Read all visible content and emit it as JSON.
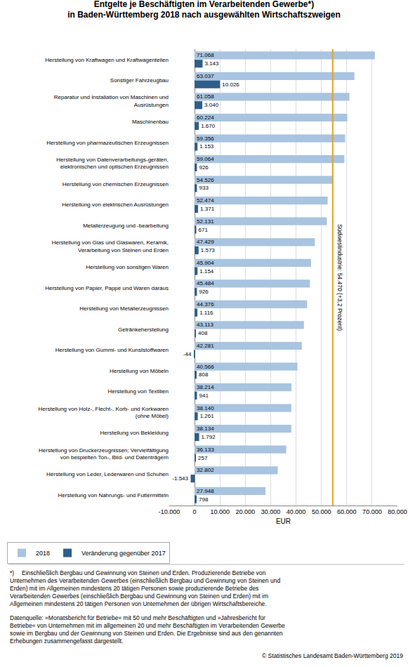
{
  "chart_data": {
    "type": "bar",
    "orientation": "horizontal",
    "title": "Entgelte je Beschäftigten im Verarbeitenden Gewerbe*)\nin Baden-Württemberg 2018 nach ausgewählten Wirtschaftszweigen",
    "categories": [
      "Herstellung von Kraftwagen und Kraftwagenteilen",
      "Sonstiger Fahrzeugbau",
      "Reparatur und Installation von Maschinen und\nAusrüstungen",
      "Maschinenbau",
      "Herstellung von pharmazeutischen Erzeugnissen",
      "Herstellung von Datenverarbeitungs-geräten,\nelektronischen und optischen Erzeugnissen",
      "Herstellung von chemischen Erzeugnissen",
      "Herstellung von elektrischen Ausrüstungen",
      "Metallerzeugung und -bearbeitung",
      "Herstellung von Glas und Glaswaren, Keramik,\nVerarbeitung von Steinen und Erden",
      "Herstellung von sonstigen Waren",
      "Herstellung von Papier, Pappe und Waren daraus",
      "Herstellung von Metallerzeugnissen",
      "Getränkeherstellung",
      "Herstellung von Gummi- und Kunststoffwaren",
      "Herstellung von Möbeln",
      "Herstellung von Textilien",
      "Herstellung von Holz-, Flecht-, Korb- und Korkwaren\n(ohne Möbel)",
      "Herstellung von Bekleidung",
      "Herstellung von Druckerzeugnissen; Vervielfältigung\nvon bespielten Ton-, Bild- und Datenträgern",
      "Herstellung von Leder, Lederwaren und Schuhen",
      "Herstellung von Nahrungs- und Futtermitteln"
    ],
    "series": [
      {
        "name": "2018",
        "color": "#a8c4e0",
        "values": [
          71068,
          63037,
          61058,
          60224,
          59356,
          59064,
          54526,
          52474,
          52131,
          47429,
          45904,
          45484,
          44376,
          43113,
          42281,
          40566,
          38214,
          38140,
          38134,
          36133,
          32802,
          27948
        ],
        "value_labels": [
          "71.068",
          "63.037",
          "61.058",
          "60.224",
          "59.356",
          "59.064",
          "54.526",
          "52.474",
          "52.131",
          "47.429",
          "45.904",
          "45.484",
          "44.376",
          "43.113",
          "42.281",
          "40.566",
          "38.214",
          "38.140",
          "38.134",
          "36.133",
          "32.802",
          "27.948"
        ]
      },
      {
        "name": "Veränderung gegenüber 2017",
        "color": "#2e5f8a",
        "values": [
          3143,
          10026,
          3040,
          1670,
          1153,
          926,
          933,
          1371,
          671,
          1573,
          1154,
          926,
          1116,
          408,
          -44,
          808,
          941,
          1261,
          1792,
          257,
          -1543,
          798
        ],
        "value_labels": [
          "3.143",
          "10.026",
          "3.040",
          "1.670",
          "1.153",
          "926",
          "933",
          "1.371",
          "671",
          "1.573",
          "1.154",
          "926",
          "1.116",
          "408",
          "-44",
          "808",
          "941",
          "1.261",
          "1.792",
          "257",
          "-1.543",
          "798"
        ]
      }
    ],
    "data_labels": true,
    "reference_line": {
      "value": 54470,
      "label": "Südwestindustrie: 54.470 (+3,2 Prozent)",
      "color": "#e8a020"
    },
    "xlabel": "EUR",
    "xlim": [
      -10000,
      80000
    ],
    "xticks": [
      {
        "value": -10000,
        "label": "-10.000"
      },
      0,
      {
        "value": 10000,
        "label": "10.000"
      },
      {
        "value": 20000,
        "label": "20.000"
      },
      {
        "value": 30000,
        "label": "30.000"
      },
      {
        "value": 40000,
        "label": "40.000"
      },
      {
        "value": 50000,
        "label": "50.000"
      },
      {
        "value": 60000,
        "label": "60.000"
      },
      {
        "value": 70000,
        "label": "70.000"
      },
      {
        "value": 80000,
        "label": "80.000"
      }
    ],
    "grid": true,
    "legend": "bottom",
    "footnote": "*)  Einschließlich Bergbau und Gewinnung von Steinen und Erden. Produzierende Betriebe von\nUnternehmen des Verarbeitenden Gewerbes (einschließlich Bergbau und Gewinnung von Steinen und\nErden) mit im Allgemeinen mindestens 20 tätigen Personen sowie produzierende Betriebe des\nVerarbeitenden Gewerbes (einschließlich Bergbau und Gewinnung von Steinen und Erden) mit im\nAllgemeinen mindestens 20 tätigen Personen von Unternehmen der übrigen Wirtschaftsbereiche.",
    "source": "Datenquelle: »Monatsbericht für Betriebe« mit 50 und mehr Beschäftigten und »Jahresbericht für\nBetriebe« von Unternehmen mit im allgemeinen 20 und mehr Beschäftigten im Verarbeitenden Gewerbe\nsowie im Bergbau und der Gewinnung von Steinen und Erden. Die Ergebnisse sind aus den genannten\nErhebungen zusammengefasst dargestellt.",
    "copyright": "© Statistisches Landesamt Baden-Württemberg 2019"
  }
}
